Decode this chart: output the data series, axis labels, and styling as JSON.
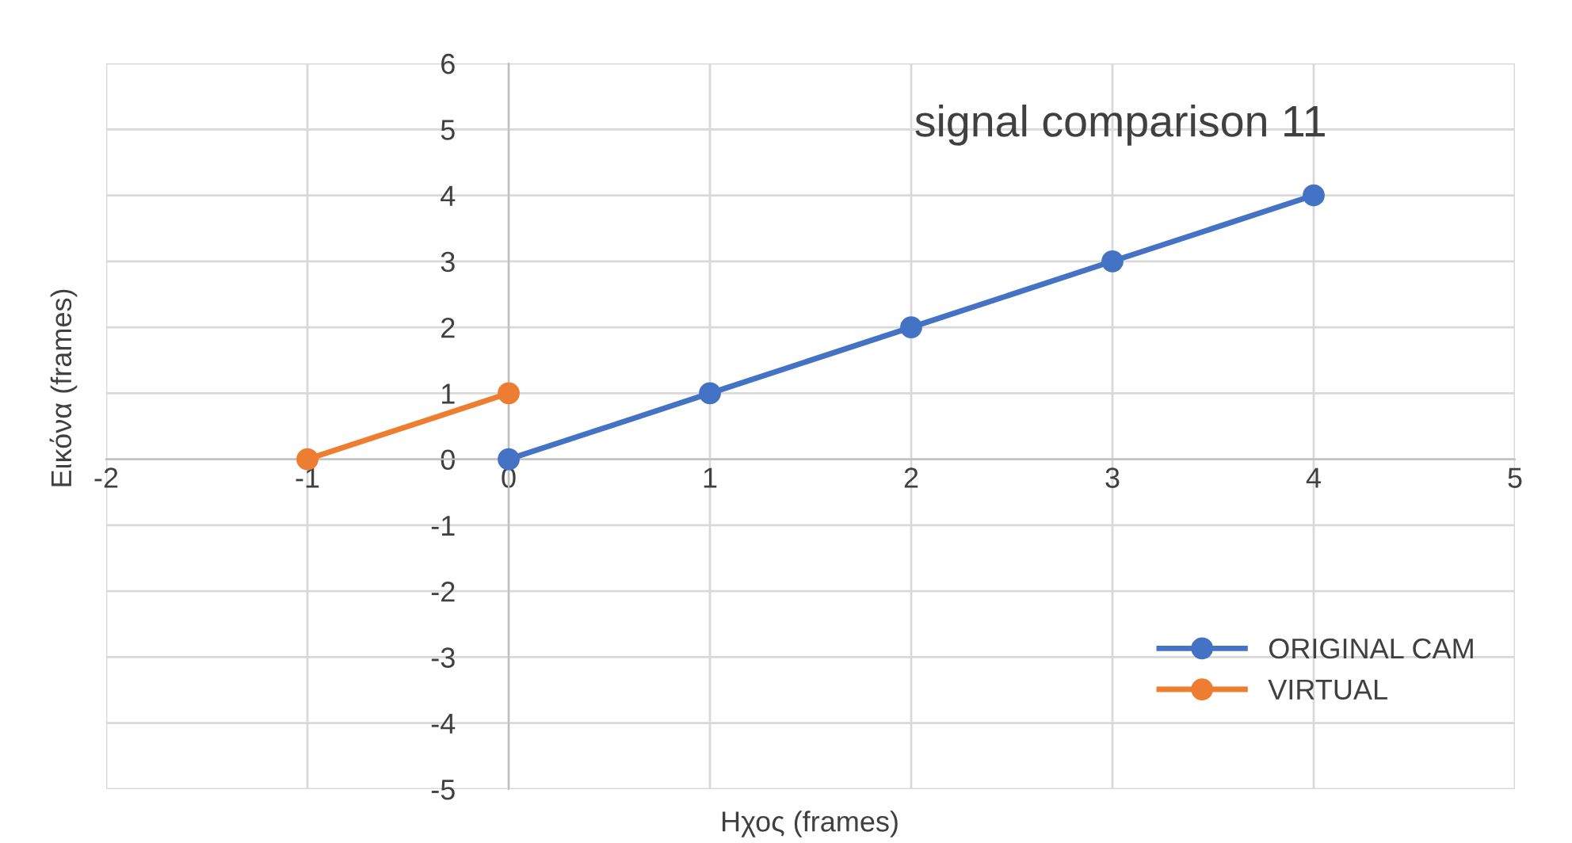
{
  "chart_data": {
    "type": "line",
    "title": "signal comparison 11",
    "xlabel": "Ηχος (frames)",
    "ylabel": "Εικόνα (frames)",
    "series": [
      {
        "name": "ORIGINAL CAM",
        "color": "#4472c4",
        "x": [
          0,
          1,
          2,
          3,
          4
        ],
        "values": [
          0,
          1,
          2,
          3,
          4
        ]
      },
      {
        "name": "VIRTUAL",
        "color": "#ed7d31",
        "x": [
          -1,
          0
        ],
        "values": [
          0,
          1
        ]
      }
    ],
    "xlim": [
      -2,
      5
    ],
    "xticks": [
      -2,
      -1,
      0,
      1,
      2,
      3,
      4,
      5
    ],
    "ylim": [
      -5,
      6
    ],
    "yticks": [
      -5,
      -4,
      -3,
      -2,
      -1,
      0,
      1,
      2,
      3,
      4,
      5,
      6
    ],
    "grid": true,
    "legend": "bottom right",
    "marker": "circle",
    "line_style": "solid"
  }
}
